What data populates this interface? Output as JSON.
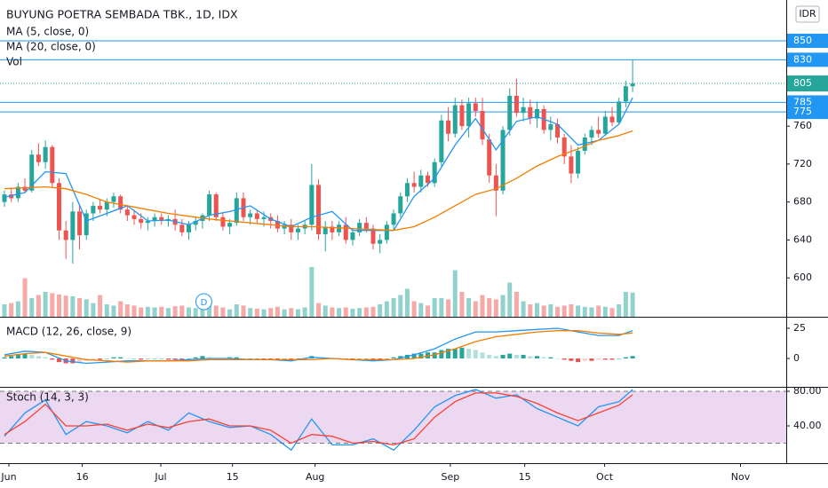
{
  "chart_data": [
    {
      "type": "candlestick",
      "title": "BUYUNG POETRA SEMBADA TBK., 1D, IDX",
      "currency": "IDR",
      "up_color": "#26a69a",
      "down_color": "#ef5350",
      "x": [
        0,
        1,
        2,
        3,
        4,
        5,
        6,
        7,
        8,
        9,
        10,
        11,
        12,
        13,
        14,
        15,
        16,
        17,
        18,
        19,
        20,
        21,
        22,
        23,
        24,
        25,
        26,
        27,
        28,
        29,
        30,
        31,
        32,
        33,
        34,
        35,
        36,
        37,
        38,
        39,
        40,
        41,
        42,
        43,
        44,
        45,
        46,
        47,
        48,
        49,
        50,
        51,
        52,
        53,
        54,
        55,
        56,
        57,
        58,
        59,
        60,
        61,
        62,
        63,
        64,
        65,
        66,
        67,
        68,
        69,
        70,
        71,
        72,
        73,
        74,
        75,
        76,
        77,
        78,
        79,
        80,
        81,
        82,
        83,
        84,
        85,
        86,
        87,
        88,
        89,
        90,
        91,
        92
      ],
      "open": [
        680,
        688,
        684,
        696,
        692,
        730,
        722,
        738,
        700,
        650,
        640,
        670,
        645,
        668,
        676,
        672,
        680,
        686,
        672,
        666,
        662,
        658,
        660,
        664,
        660,
        662,
        656,
        648,
        656,
        660,
        666,
        688,
        664,
        654,
        658,
        684,
        664,
        668,
        662,
        664,
        660,
        652,
        656,
        648,
        652,
        656,
        698,
        646,
        654,
        648,
        656,
        640,
        648,
        658,
        652,
        636,
        640,
        656,
        668,
        686,
        700,
        696,
        708,
        700,
        722,
        766,
        752,
        782,
        760,
        784,
        776,
        746,
        708,
        692,
        756,
        792,
        774,
        780,
        768,
        778,
        756,
        762,
        748,
        728,
        710,
        734,
        748,
        756,
        752,
        770,
        764,
        786,
        802
      ],
      "high": [
        692,
        695,
        700,
        705,
        735,
        742,
        745,
        740,
        705,
        660,
        680,
        678,
        672,
        680,
        682,
        684,
        690,
        688,
        676,
        672,
        668,
        664,
        668,
        668,
        666,
        672,
        662,
        660,
        665,
        668,
        692,
        690,
        668,
        662,
        690,
        690,
        672,
        672,
        670,
        668,
        666,
        660,
        662,
        656,
        660,
        720,
        704,
        660,
        660,
        660,
        664,
        652,
        662,
        664,
        656,
        646,
        660,
        672,
        690,
        705,
        712,
        714,
        712,
        726,
        772,
        780,
        790,
        788,
        790,
        790,
        790,
        752,
        720,
        760,
        800,
        810,
        790,
        788,
        786,
        782,
        770,
        768,
        752,
        740,
        738,
        752,
        760,
        770,
        776,
        780,
        790,
        808,
        830
      ],
      "low": [
        675,
        680,
        680,
        690,
        690,
        718,
        715,
        695,
        640,
        620,
        615,
        630,
        640,
        660,
        668,
        665,
        674,
        668,
        660,
        656,
        652,
        650,
        654,
        656,
        654,
        650,
        644,
        640,
        650,
        652,
        660,
        660,
        650,
        646,
        655,
        660,
        656,
        658,
        654,
        652,
        648,
        646,
        640,
        640,
        646,
        650,
        640,
        628,
        640,
        644,
        636,
        634,
        644,
        648,
        630,
        626,
        636,
        650,
        664,
        680,
        690,
        690,
        696,
        696,
        718,
        744,
        748,
        756,
        748,
        770,
        740,
        700,
        665,
        688,
        750,
        770,
        765,
        762,
        758,
        752,
        745,
        742,
        720,
        700,
        705,
        730,
        740,
        748,
        750,
        760,
        762,
        780,
        796
      ],
      "close": [
        688,
        684,
        696,
        692,
        730,
        722,
        738,
        700,
        650,
        640,
        670,
        645,
        668,
        676,
        672,
        680,
        686,
        672,
        666,
        662,
        658,
        660,
        664,
        660,
        662,
        656,
        648,
        656,
        660,
        666,
        688,
        664,
        654,
        658,
        684,
        664,
        668,
        662,
        664,
        660,
        652,
        656,
        648,
        652,
        656,
        698,
        646,
        654,
        648,
        656,
        640,
        648,
        658,
        652,
        636,
        640,
        656,
        668,
        686,
        700,
        696,
        708,
        700,
        722,
        766,
        752,
        782,
        760,
        784,
        776,
        746,
        708,
        692,
        756,
        792,
        774,
        780,
        768,
        778,
        756,
        762,
        748,
        728,
        710,
        734,
        748,
        756,
        752,
        770,
        764,
        786,
        802,
        805
      ],
      "volume_name": "Vol",
      "volume": [
        20,
        22,
        25,
        62,
        30,
        35,
        40,
        38,
        36,
        34,
        33,
        30,
        28,
        22,
        35,
        20,
        18,
        25,
        20,
        18,
        15,
        16,
        15,
        16,
        14,
        17,
        18,
        15,
        14,
        16,
        20,
        18,
        15,
        12,
        20,
        18,
        14,
        13,
        12,
        14,
        16,
        12,
        14,
        12,
        15,
        80,
        22,
        18,
        15,
        14,
        15,
        13,
        14,
        15,
        16,
        20,
        25,
        30,
        35,
        45,
        25,
        22,
        18,
        30,
        30,
        28,
        75,
        40,
        30,
        25,
        35,
        30,
        28,
        35,
        55,
        40,
        25,
        20,
        22,
        18,
        20,
        16,
        18,
        20,
        18,
        16,
        15,
        18,
        16,
        14,
        20,
        40,
        39
      ],
      "volume_lim": [
        0,
        100
      ],
      "series": [
        {
          "name": "MA (5, close, 0)",
          "color": "#2196f3",
          "x": [
            0,
            3,
            6,
            9,
            12,
            15,
            18,
            21,
            24,
            27,
            30,
            33,
            36,
            39,
            42,
            45,
            48,
            51,
            54,
            57,
            60,
            63,
            66,
            69,
            72,
            75,
            78,
            81,
            84,
            87,
            90,
            92
          ],
          "values": [
            685,
            690,
            712,
            710,
            660,
            668,
            676,
            660,
            661,
            656,
            666,
            670,
            676,
            662,
            654,
            664,
            670,
            650,
            650,
            650,
            686,
            705,
            740,
            768,
            735,
            765,
            770,
            762,
            740,
            745,
            762,
            790
          ]
        },
        {
          "name": "MA (20, close, 0)",
          "color": "#f57c00",
          "x": [
            0,
            3,
            6,
            9,
            12,
            15,
            18,
            21,
            24,
            27,
            30,
            33,
            36,
            39,
            42,
            45,
            48,
            51,
            54,
            57,
            60,
            63,
            66,
            69,
            72,
            75,
            78,
            81,
            84,
            87,
            90,
            92
          ],
          "values": [
            694,
            695,
            696,
            694,
            688,
            680,
            676,
            672,
            668,
            665,
            662,
            660,
            658,
            656,
            654,
            654,
            653,
            652,
            651,
            650,
            654,
            664,
            676,
            688,
            694,
            705,
            718,
            728,
            736,
            745,
            750,
            755
          ]
        }
      ],
      "hlines": [
        850,
        830,
        785,
        775
      ],
      "hline_color": "#2196f3",
      "markers": [
        {
          "x": 29.2,
          "label": "D"
        }
      ],
      "ylim": [
        559,
        893
      ],
      "yticks": [
        600,
        640,
        680,
        720,
        760
      ],
      "xlim": [
        -0.65,
        114.5
      ],
      "xticks": [
        {
          "value": 0.65,
          "label": "Jun"
        },
        {
          "value": 11.4,
          "label": "16"
        },
        {
          "value": 22.9,
          "label": "Jul"
        },
        {
          "value": 33.4,
          "label": "15"
        },
        {
          "value": 45.5,
          "label": "Aug"
        },
        {
          "value": 65.3,
          "label": "Sep"
        },
        {
          "value": 76.2,
          "label": "15"
        },
        {
          "value": 87.9,
          "label": "Oct"
        },
        {
          "value": 107.8,
          "label": "Nov"
        }
      ]
    },
    {
      "type": "macd",
      "title": "MACD (12, 26, close, 9)",
      "series": [
        {
          "color": "#2196f3",
          "x": [
            0,
            3,
            6,
            9,
            12,
            15,
            18,
            21,
            24,
            27,
            30,
            33,
            36,
            39,
            42,
            45,
            48,
            51,
            54,
            57,
            60,
            63,
            66,
            69,
            72,
            75,
            78,
            81,
            84,
            87,
            90,
            92
          ],
          "values": [
            3,
            6,
            5,
            -2,
            -4,
            -3,
            -2,
            -2,
            -2,
            -1,
            0,
            0,
            -1,
            -1,
            -2,
            1,
            0,
            -1,
            -2,
            -1,
            3,
            8,
            16,
            22,
            22,
            23,
            24,
            25,
            22,
            19,
            19,
            23
          ]
        },
        {
          "color": "#f57c00",
          "x": [
            0,
            3,
            6,
            9,
            12,
            15,
            18,
            21,
            24,
            27,
            30,
            33,
            36,
            39,
            42,
            45,
            48,
            51,
            54,
            57,
            60,
            63,
            66,
            69,
            72,
            75,
            78,
            81,
            84,
            87,
            90,
            92
          ],
          "values": [
            2,
            4,
            5,
            2,
            -1,
            -2,
            -3,
            -2,
            -2,
            -2,
            -1,
            -1,
            -1,
            -1,
            -1,
            -1,
            0,
            -1,
            -1,
            -1,
            0,
            3,
            8,
            14,
            18,
            20,
            22,
            23,
            23,
            21,
            20,
            21
          ]
        }
      ],
      "histogram": {
        "colors": [
          "#26a69a",
          "#b2dfdb",
          "#ef5350",
          "#ffcdd2"
        ],
        "values": [
          1,
          2,
          3,
          4,
          3,
          2,
          1,
          -1,
          -3,
          -4,
          -4,
          -3,
          -2,
          -1,
          -1,
          0,
          1,
          1,
          0,
          0,
          -1,
          0,
          0,
          0,
          -1,
          -1,
          -1,
          0,
          1,
          2,
          1,
          0,
          0,
          1,
          1,
          0,
          0,
          0,
          -1,
          -1,
          -1,
          0,
          -1,
          0,
          0,
          2,
          1,
          0,
          0,
          0,
          -1,
          -1,
          0,
          0,
          -1,
          -1,
          0,
          1,
          2,
          3,
          4,
          4,
          5,
          5,
          7,
          8,
          8,
          9,
          8,
          7,
          5,
          3,
          2,
          3,
          4,
          3,
          3,
          2,
          2,
          1,
          1,
          0,
          -1,
          -2,
          -3,
          -2,
          -2,
          -1,
          -1,
          -1,
          0,
          1,
          2
        ]
      },
      "ylim": [
        -23.5,
        33.8
      ],
      "yticks": [
        0,
        25
      ]
    },
    {
      "type": "stochastic",
      "title": "Stoch (14, 3, 3)",
      "series": [
        {
          "color": "#2196f3",
          "x": [
            0,
            3,
            6,
            9,
            12,
            15,
            18,
            21,
            24,
            27,
            30,
            33,
            36,
            39,
            42,
            45,
            48,
            51,
            54,
            57,
            60,
            63,
            66,
            69,
            72,
            75,
            78,
            81,
            84,
            87,
            90,
            92
          ],
          "values": [
            28,
            55,
            70,
            30,
            45,
            40,
            32,
            45,
            35,
            55,
            45,
            38,
            40,
            30,
            12,
            48,
            18,
            18,
            25,
            12,
            35,
            62,
            75,
            82,
            72,
            76,
            60,
            50,
            40,
            62,
            68,
            82
          ]
        },
        {
          "color": "#f44336",
          "x": [
            0,
            3,
            6,
            9,
            12,
            15,
            18,
            21,
            24,
            27,
            30,
            33,
            36,
            39,
            42,
            45,
            48,
            51,
            54,
            57,
            60,
            63,
            66,
            69,
            72,
            75,
            78,
            81,
            84,
            87,
            90,
            92
          ],
          "values": [
            30,
            45,
            65,
            40,
            40,
            42,
            35,
            42,
            38,
            45,
            48,
            40,
            40,
            35,
            20,
            30,
            28,
            20,
            22,
            18,
            25,
            50,
            68,
            78,
            78,
            74,
            66,
            55,
            46,
            55,
            64,
            76
          ]
        }
      ],
      "bands": [
        20,
        80
      ],
      "band_color": "#e1bee7",
      "ylim": [
        -3.1,
        84.1
      ],
      "yticks": [
        {
          "value": 80,
          "label": "80.00"
        },
        {
          "value": 40,
          "label": "40.00"
        }
      ]
    }
  ]
}
